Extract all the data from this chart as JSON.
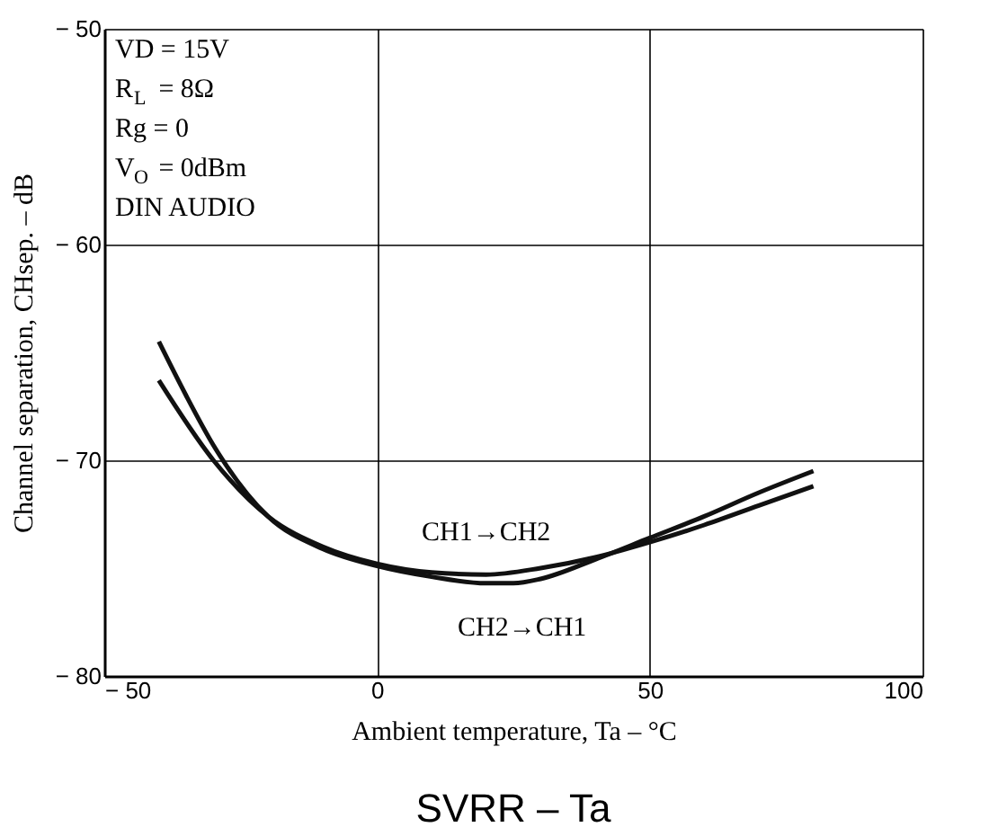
{
  "chart_data": {
    "type": "line",
    "xlabel": "Ambient temperature, Ta  –  °C",
    "ylabel": "Channel separation, CHsep.  –  dB",
    "xlim": [
      -50,
      100
    ],
    "xticks": [
      {
        "value": -50,
        "label": "− 50"
      },
      0,
      50,
      100
    ],
    "ylim": [
      -80,
      -50
    ],
    "yticks": [
      {
        "value": -80,
        "label": "− 80"
      },
      {
        "value": -70,
        "label": "− 70"
      },
      {
        "value": -60,
        "label": "− 60"
      },
      {
        "value": -50,
        "label": "− 50"
      }
    ],
    "grid": true,
    "legend": false,
    "marker": "none",
    "line_style": "solid",
    "series": [
      {
        "name": "CH1→CH2",
        "color": "#111111",
        "x": [
          -40,
          -30,
          -20,
          -10,
          0,
          10,
          20,
          30,
          40,
          50,
          60,
          70,
          80
        ],
        "values": [
          -66.3,
          -70.0,
          -72.6,
          -74.0,
          -74.8,
          -75.2,
          -75.3,
          -75.0,
          -74.5,
          -73.8,
          -73.0,
          -72.1,
          -71.2
        ]
      },
      {
        "name": "CH2→CH1",
        "color": "#111111",
        "x": [
          -40,
          -35,
          -30,
          -20,
          -10,
          0,
          10,
          20,
          25,
          30,
          40,
          50,
          60,
          70,
          80
        ],
        "values": [
          -64.5,
          -67.0,
          -69.3,
          -72.6,
          -74.1,
          -74.9,
          -75.4,
          -75.7,
          -75.7,
          -75.5,
          -74.6,
          -73.6,
          -72.6,
          -71.5,
          -70.5
        ]
      }
    ],
    "annotations": [
      "VD = 15V",
      "R$_{L}$ = 8Ω",
      "Rg = 0",
      "V$_{O}$ = 0dBm",
      "DIN AUDIO",
      "SVRR  –  Ta"
    ]
  }
}
